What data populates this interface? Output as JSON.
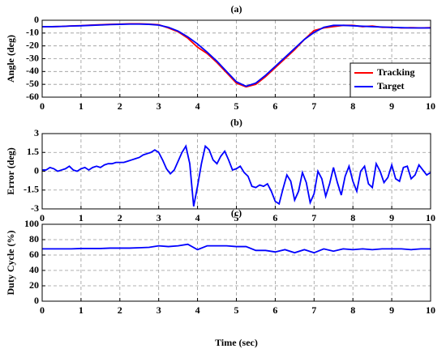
{
  "chart_data": [
    {
      "type": "line",
      "title": "(a)",
      "y_label": "Angle (deg)",
      "x": [
        0,
        0.25,
        0.5,
        0.75,
        1,
        1.25,
        1.5,
        1.75,
        2,
        2.25,
        2.5,
        2.75,
        3,
        3.25,
        3.5,
        3.75,
        4,
        4.25,
        4.5,
        4.75,
        5,
        5.25,
        5.5,
        5.75,
        6,
        6.25,
        6.5,
        6.75,
        7,
        7.25,
        7.5,
        7.75,
        8,
        8.25,
        8.5,
        8.75,
        9,
        9.25,
        9.5,
        9.75,
        10
      ],
      "series": [
        {
          "name": "Tracking",
          "color": "#ff0000",
          "values": [
            -5,
            -5,
            -4.8,
            -4.4,
            -4.2,
            -3.8,
            -3.5,
            -3.2,
            -3,
            -2.8,
            -2.8,
            -3,
            -3.5,
            -6,
            -9,
            -14,
            -21,
            -26,
            -33,
            -41,
            -49,
            -52,
            -50,
            -44,
            -37,
            -30,
            -23,
            -15,
            -8,
            -6,
            -5,
            -4,
            -4,
            -5,
            -4.5,
            -5.5,
            -5.5,
            -6,
            -5.8,
            -6,
            -5.8
          ]
        },
        {
          "name": "Target",
          "color": "#0000ff",
          "values": [
            -5,
            -5,
            -4.8,
            -4.5,
            -4.3,
            -4,
            -3.7,
            -3.4,
            -3.2,
            -3,
            -3,
            -3.2,
            -3.8,
            -5.5,
            -8.5,
            -13,
            -18.5,
            -25,
            -32,
            -40,
            -48,
            -51.5,
            -49,
            -43,
            -36,
            -29,
            -22,
            -15,
            -9.5,
            -5.5,
            -4,
            -4,
            -4.3,
            -4.7,
            -5,
            -5.3,
            -5.6,
            -5.8,
            -6,
            -6,
            -6
          ]
        }
      ],
      "xlim": [
        0,
        10
      ],
      "ylim": [
        -60,
        0
      ],
      "xticks": [
        0,
        1,
        2,
        3,
        4,
        5,
        6,
        7,
        8,
        9,
        10
      ],
      "yticks": [
        0,
        -10,
        -20,
        -30,
        -40,
        -50,
        -60
      ],
      "grid": true,
      "legend": "lower right"
    },
    {
      "type": "line",
      "title": "(b)",
      "y_label": "Error (deg)",
      "x": [
        0,
        0.1,
        0.2,
        0.3,
        0.4,
        0.5,
        0.6,
        0.7,
        0.8,
        0.9,
        1,
        1.1,
        1.2,
        1.3,
        1.4,
        1.5,
        1.6,
        1.7,
        1.8,
        1.9,
        2,
        2.1,
        2.2,
        2.3,
        2.4,
        2.5,
        2.6,
        2.7,
        2.8,
        2.9,
        3,
        3.1,
        3.2,
        3.3,
        3.4,
        3.5,
        3.6,
        3.7,
        3.8,
        3.9,
        4,
        4.1,
        4.2,
        4.3,
        4.4,
        4.5,
        4.6,
        4.7,
        4.8,
        4.9,
        5,
        5.1,
        5.2,
        5.3,
        5.4,
        5.5,
        5.6,
        5.7,
        5.8,
        5.9,
        6,
        6.1,
        6.2,
        6.3,
        6.4,
        6.5,
        6.6,
        6.7,
        6.8,
        6.9,
        7,
        7.1,
        7.2,
        7.3,
        7.4,
        7.5,
        7.6,
        7.7,
        7.8,
        7.9,
        8,
        8.1,
        8.2,
        8.3,
        8.4,
        8.5,
        8.6,
        8.7,
        8.8,
        8.9,
        9,
        9.1,
        9.2,
        9.3,
        9.4,
        9.5,
        9.6,
        9.7,
        9.8,
        9.9,
        10
      ],
      "series": [
        {
          "name": "Error",
          "color": "#0000ff",
          "values": [
            0.1,
            0.1,
            0.3,
            0.2,
            0,
            0.1,
            0.2,
            0.4,
            0.1,
            0,
            0.2,
            0.3,
            0.1,
            0.3,
            0.4,
            0.3,
            0.5,
            0.6,
            0.6,
            0.7,
            0.7,
            0.7,
            0.8,
            0.9,
            1,
            1.1,
            1.3,
            1.4,
            1.5,
            1.7,
            1.5,
            0.9,
            0.2,
            -0.2,
            0.1,
            0.8,
            1.5,
            2,
            0.6,
            -2.8,
            -1.2,
            0.6,
            2,
            1.7,
            0.9,
            0.6,
            1.2,
            1.6,
            0.9,
            0.1,
            0.2,
            0.4,
            -0.1,
            -0.4,
            -1.2,
            -1.3,
            -1.1,
            -1.2,
            -1,
            -1.6,
            -2.4,
            -2.6,
            -1.4,
            -0.3,
            -0.8,
            -2.3,
            -1.6,
            -0.1,
            -0.9,
            -2.5,
            -1.8,
            0,
            -0.6,
            -2,
            -1,
            0.3,
            -0.9,
            -1.9,
            -0.4,
            0.4,
            -0.8,
            -1.6,
            0,
            0.4,
            -1,
            -1.3,
            0.6,
            0,
            -0.9,
            -0.5,
            0.5,
            -0.6,
            -0.8,
            0.3,
            0.4,
            -0.6,
            -0.3,
            0.5,
            0.1,
            -0.3,
            -0.1
          ]
        }
      ],
      "xlim": [
        0,
        10
      ],
      "ylim": [
        -3,
        3
      ],
      "xticks": [
        0,
        1,
        2,
        3,
        4,
        5,
        6,
        7,
        8,
        9,
        10
      ],
      "yticks": [
        3,
        1.5,
        0,
        -1.5,
        -3
      ],
      "grid": true
    },
    {
      "type": "line",
      "title": "(c)",
      "y_label": "Duty Cycle (%)",
      "x_label": "Time (sec)",
      "x": [
        0,
        0.25,
        0.5,
        0.75,
        1,
        1.25,
        1.5,
        1.75,
        2,
        2.25,
        2.5,
        2.75,
        3,
        3.25,
        3.5,
        3.75,
        4,
        4.25,
        4.5,
        4.75,
        5,
        5.25,
        5.5,
        5.75,
        6,
        6.25,
        6.5,
        6.75,
        7,
        7.25,
        7.5,
        7.75,
        8,
        8.25,
        8.5,
        8.75,
        9,
        9.25,
        9.5,
        9.75,
        10
      ],
      "series": [
        {
          "name": "Duty Cycle",
          "color": "#0000ff",
          "values": [
            68,
            68,
            68,
            68,
            68.5,
            68.5,
            68.5,
            69,
            69,
            69,
            69.5,
            70,
            72,
            71,
            72,
            74,
            67,
            72,
            72,
            72,
            71,
            71,
            66,
            66,
            64,
            67,
            63,
            67,
            63,
            68,
            65,
            68,
            67,
            68,
            67,
            68,
            68,
            68,
            67,
            68,
            68
          ]
        }
      ],
      "xlim": [
        0,
        10
      ],
      "ylim": [
        0,
        100
      ],
      "xticks": [
        0,
        1,
        2,
        3,
        4,
        5,
        6,
        7,
        8,
        9,
        10
      ],
      "yticks": [
        0,
        20,
        40,
        60,
        80,
        100
      ],
      "grid": true
    }
  ]
}
